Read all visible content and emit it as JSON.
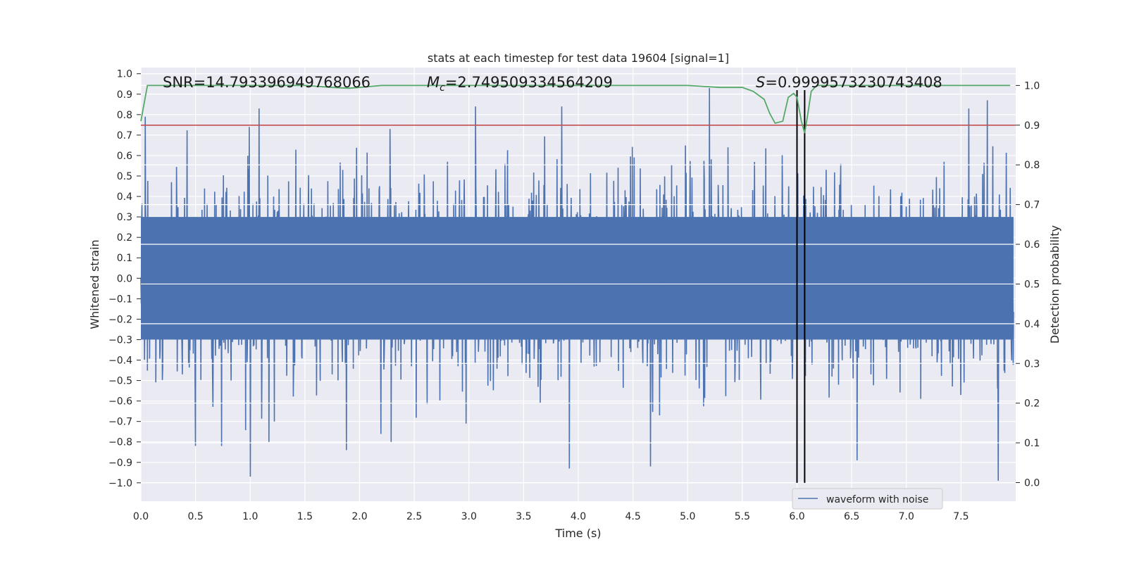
{
  "chart_data": {
    "type": "line",
    "title": "stats at each timestep for test data 19604 [signal=1]",
    "xlabel": "Time (s)",
    "ylabel": "Whitened strain",
    "y2label": "Detection probability",
    "xlim": [
      0.0,
      8.0
    ],
    "ylim": [
      -1.09,
      1.03
    ],
    "y2lim": [
      -0.047,
      1.045
    ],
    "x_ticks": [
      0.0,
      0.5,
      1.0,
      1.5,
      2.0,
      2.5,
      3.0,
      3.5,
      4.0,
      4.5,
      5.0,
      5.5,
      6.0,
      6.5,
      7.0,
      7.5
    ],
    "x_tick_labels": [
      "0.0",
      "0.5",
      "1.0",
      "1.5",
      "2.0",
      "2.5",
      "3.0",
      "3.5",
      "4.0",
      "4.5",
      "5.0",
      "5.5",
      "6.0",
      "6.5",
      "7.0",
      "7.5"
    ],
    "y_ticks": [
      -1.0,
      -0.9,
      -0.8,
      -0.7,
      -0.6,
      -0.5,
      -0.4,
      -0.3,
      -0.2,
      -0.1,
      0.0,
      0.1,
      0.2,
      0.3,
      0.4,
      0.5,
      0.6,
      0.7,
      0.8,
      0.9,
      1.0
    ],
    "y_tick_labels": [
      "−1.0",
      "−0.9",
      "−0.8",
      "−0.7",
      "−0.6",
      "−0.5",
      "−0.4",
      "−0.3",
      "−0.2",
      "−0.1",
      "0.0",
      "0.1",
      "0.2",
      "0.3",
      "0.4",
      "0.5",
      "0.6",
      "0.7",
      "0.8",
      "0.9",
      "1.0"
    ],
    "y2_ticks": [
      0.0,
      0.1,
      0.2,
      0.3,
      0.4,
      0.5,
      0.6,
      0.7,
      0.8,
      0.9,
      1.0
    ],
    "y2_tick_labels": [
      "0.0",
      "0.1",
      "0.2",
      "0.3",
      "0.4",
      "0.5",
      "0.6",
      "0.7",
      "0.8",
      "0.9",
      "1.0"
    ],
    "grid": true,
    "series": [
      {
        "name": "waveform with noise",
        "axis": "left",
        "color": "#4c72b0",
        "description": "noisy whitened strain sampled over 0–8 s",
        "sample_count": 2400,
        "seed": 19604,
        "peak_up": [
          {
            "x": 0.04,
            "y": 0.79
          },
          {
            "x": 0.99,
            "y": 0.74
          },
          {
            "x": 1.08,
            "y": 0.83
          },
          {
            "x": 2.28,
            "y": 0.73
          },
          {
            "x": 3.06,
            "y": 0.84
          },
          {
            "x": 3.85,
            "y": 0.84
          },
          {
            "x": 4.66,
            "y": 0.9
          },
          {
            "x": 5.2,
            "y": 0.93
          },
          {
            "x": 7.57,
            "y": 0.83
          },
          {
            "x": 7.74,
            "y": 0.87
          },
          {
            "x": 7.84,
            "y": 0.91
          }
        ],
        "peak_down": [
          {
            "x": 0.5,
            "y": -0.82
          },
          {
            "x": 0.74,
            "y": -0.82
          },
          {
            "x": 1.0,
            "y": -0.97
          },
          {
            "x": 1.88,
            "y": -0.84
          },
          {
            "x": 3.92,
            "y": -0.93
          },
          {
            "x": 4.66,
            "y": -0.92
          },
          {
            "x": 6.55,
            "y": -0.89
          },
          {
            "x": 7.84,
            "y": -0.99
          }
        ]
      },
      {
        "name": "detection probability",
        "axis": "right",
        "color": "#55a868",
        "x": [
          0.0,
          0.06,
          0.5,
          1.0,
          1.5,
          1.75,
          1.9,
          2.0,
          2.2,
          2.5,
          3.0,
          3.5,
          4.0,
          4.5,
          5.0,
          5.3,
          5.5,
          5.6,
          5.7,
          5.75,
          5.8,
          5.87,
          5.92,
          5.97,
          6.0,
          6.04,
          6.07,
          6.1,
          6.13,
          6.18,
          6.5,
          7.0,
          7.5,
          7.95
        ],
        "values": [
          0.91,
          1.0,
          1.0,
          1.0,
          1.0,
          0.995,
          0.993,
          0.995,
          1.0,
          1.0,
          1.0,
          1.0,
          1.0,
          1.0,
          1.0,
          0.995,
          0.995,
          0.985,
          0.965,
          0.93,
          0.905,
          0.91,
          0.97,
          0.98,
          0.97,
          0.91,
          0.88,
          0.93,
          0.985,
          1.0,
          1.0,
          1.0,
          1.0,
          1.0
        ]
      }
    ],
    "threshold": {
      "axis": "right",
      "value": 0.9,
      "color": "#c44e52"
    },
    "event_lines": {
      "x": [
        6.0,
        6.07
      ],
      "color": "#000000",
      "ymin": -1.0,
      "ymax": 0.92
    },
    "annotations": {
      "snr": "SNR=14.793396949768066",
      "mc_symbol": "M",
      "mc_sub": "c",
      "mc_value": "=2.749509334564209",
      "s_symbol": "S",
      "s_value": "=0.9999573230743408"
    },
    "legend": {
      "label": "waveform with noise",
      "position": "bottom-right"
    }
  }
}
